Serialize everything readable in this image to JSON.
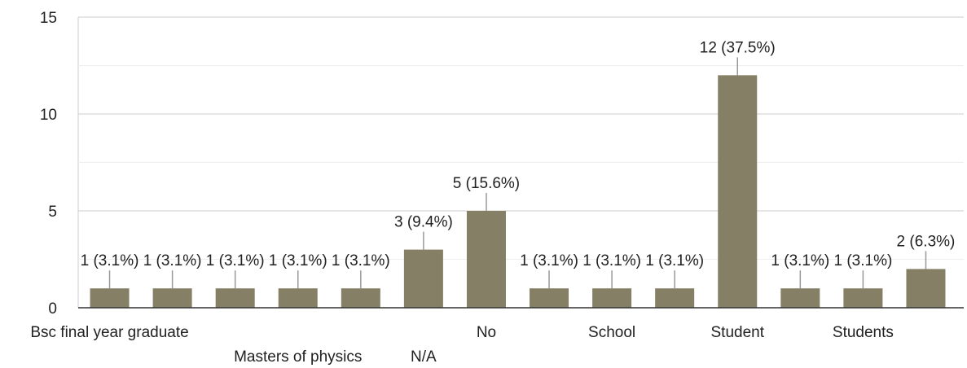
{
  "chart_data": {
    "type": "bar",
    "title": "",
    "xlabel": "",
    "ylabel": "",
    "ylim": [
      0,
      15
    ],
    "y_ticks": [
      "0",
      "5",
      "10",
      "15"
    ],
    "grid": true,
    "bar_color": "#857f65",
    "categories": [
      "Bsc final year graduate",
      "",
      "",
      "Masters of physics",
      "",
      "N/A",
      "No",
      "",
      "School",
      "",
      "Student",
      "",
      "Students",
      ""
    ],
    "values": [
      1,
      1,
      1,
      1,
      1,
      3,
      5,
      1,
      1,
      1,
      12,
      1,
      1,
      2
    ],
    "data_labels": [
      "1 (3.1%)",
      "1 (3.1%)",
      "1 (3.1%)",
      "1 (3.1%)",
      "1 (3.1%)",
      "3 (9.4%)",
      "5 (15.6%)",
      "1 (3.1%)",
      "1 (3.1%)",
      "1 (3.1%)",
      "12 (37.5%)",
      "1 (3.1%)",
      "1 (3.1%)",
      "2 (6.3%)"
    ]
  }
}
